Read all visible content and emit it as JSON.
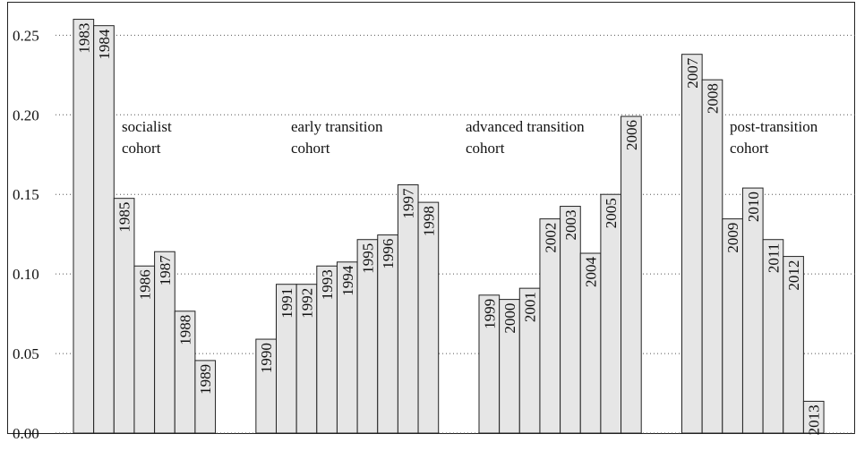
{
  "chart_data": {
    "type": "bar",
    "categories": [
      "1983",
      "1984",
      "1985",
      "1986",
      "1987",
      "1988",
      "1989",
      null,
      null,
      "1990",
      "1991",
      "1992",
      "1993",
      "1994",
      "1995",
      "1996",
      "1997",
      "1998",
      null,
      null,
      "1999",
      "2000",
      "2001",
      "2002",
      "2003",
      "2004",
      "2005",
      "2006",
      null,
      null,
      "2007",
      "2008",
      "2009",
      "2010",
      "2011",
      "2012",
      "2013"
    ],
    "values": [
      0.26,
      0.256,
      0.1475,
      0.105,
      0.114,
      0.0766,
      0.0456,
      null,
      null,
      0.059,
      0.0935,
      0.0935,
      0.105,
      0.1075,
      0.1216,
      0.1245,
      0.156,
      0.145,
      null,
      null,
      0.0867,
      0.084,
      0.091,
      0.1346,
      0.1425,
      0.113,
      0.15,
      0.199,
      null,
      null,
      0.238,
      0.222,
      0.1346,
      0.154,
      0.1216,
      0.111,
      0.02
    ],
    "color": "#e6e6e6",
    "ylim": [
      0,
      0.271
    ],
    "yticks": [
      {
        "value": 0,
        "label": "0.00"
      },
      0.05,
      {
        "value": 0.1,
        "label": "0.10"
      },
      0.15,
      {
        "value": 0.2,
        "label": "0.20"
      },
      0.25
    ],
    "grid": true,
    "annotations": [
      {
        "lines": [
          "socialist",
          "cohort"
        ]
      },
      {
        "lines": [
          "early transition",
          "cohort"
        ]
      },
      {
        "lines": [
          "advanced transition",
          "cohort"
        ]
      },
      {
        "lines": [
          "post-transition",
          "cohort"
        ]
      }
    ]
  }
}
